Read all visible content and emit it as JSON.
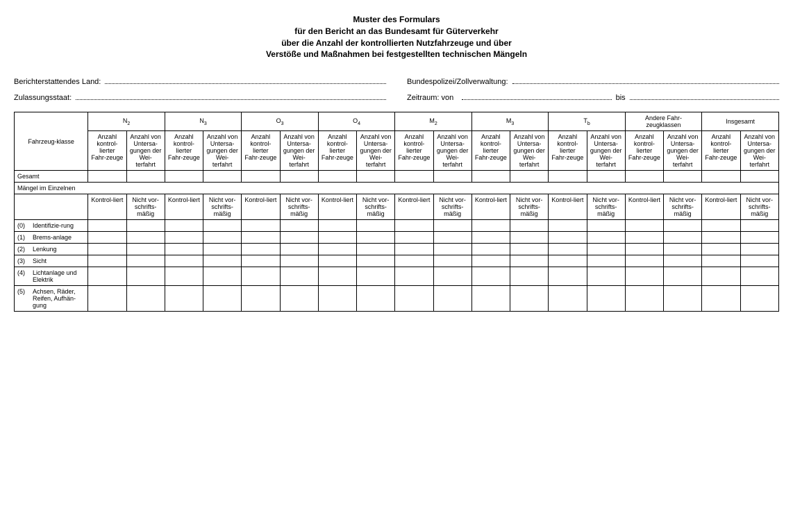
{
  "title": {
    "line1": "Muster des Formulars",
    "line2": "für den Bericht an das Bundesamt für Güterverkehr",
    "line3": "über die Anzahl der kontrollierten Nutzfahrzeuge und über",
    "line4": "Verstöße und Maßnahmen bei festgestellten technischen Mängeln"
  },
  "fields": {
    "reporting_land_label": "Berichterstattendes Land:",
    "bundespolizei_label": "Bundespolizei/Zollverwaltung:",
    "zulassungsstaat_label": "Zulassungsstaat:",
    "zeitraum_label": "Zeitraum: von",
    "bis_label": "bis"
  },
  "table": {
    "header_fahrzeugklasse": "Fahrzeug-klasse",
    "vehicle_classes": [
      {
        "label": "N",
        "sub": "2"
      },
      {
        "label": "N",
        "sub": "3"
      },
      {
        "label": "O",
        "sub": "3"
      },
      {
        "label": "O",
        "sub": "4"
      },
      {
        "label": "M",
        "sub": "2"
      },
      {
        "label": "M",
        "sub": "3"
      },
      {
        "label": "T",
        "sub": "b"
      },
      {
        "label": "Andere Fahr-zeugklassen",
        "sub": ""
      },
      {
        "label": "Insgesamt",
        "sub": ""
      }
    ],
    "subheader_controlled": "Anzahl kontrol-lierter Fahr-zeuge",
    "subheader_prohibited": "Anzahl von Untersa-gungen der Wei-terfahrt",
    "row_gesamt": "Gesamt",
    "row_maengel_im_einzelnen": "Mängel im Einzelnen",
    "subheader_kontrolliert": "Kontrol-liert",
    "subheader_nicht_vorschrift": "Nicht vor-schrifts-mäßig",
    "defect_rows": [
      {
        "num": "(0)",
        "label": "Identifizie-rung"
      },
      {
        "num": "(1)",
        "label": "Brems-anlage"
      },
      {
        "num": "(2)",
        "label": "Lenkung"
      },
      {
        "num": "(3)",
        "label": "Sicht"
      },
      {
        "num": "(4)",
        "label": "Lichtanlage und Elektrik"
      },
      {
        "num": "(5)",
        "label": "Achsen, Räder, Reifen, Aufhän-gung"
      }
    ]
  },
  "colors": {
    "text": "#000000",
    "background": "#ffffff",
    "border": "#000000"
  }
}
